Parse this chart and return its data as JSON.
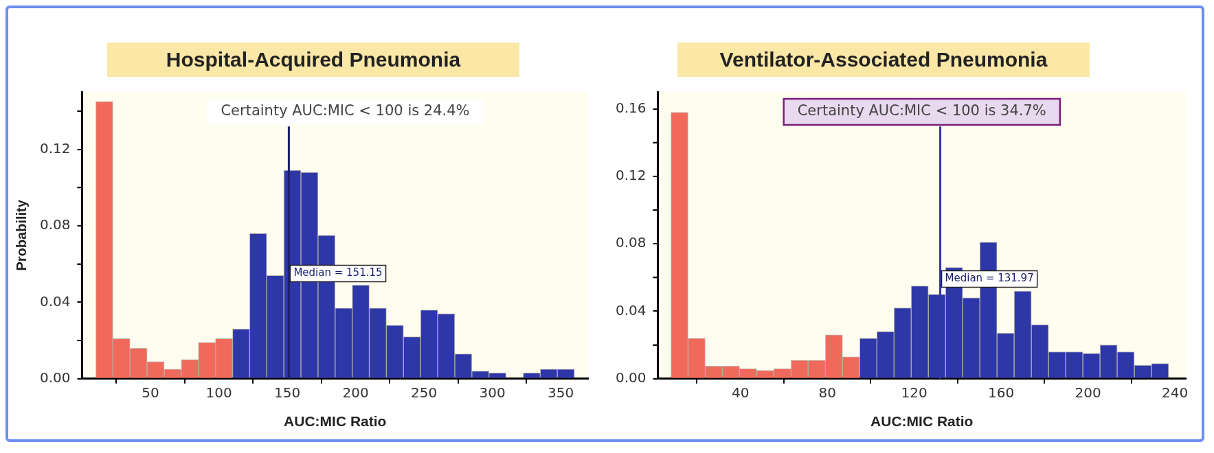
{
  "chart_data": [
    {
      "type": "histogram",
      "title": "Hospital-Acquired Pneumonia",
      "xlabel": "AUC:MIC Ratio",
      "ylabel": "Probability",
      "bins": [
        10,
        22.5,
        35,
        47.5,
        60,
        72.5,
        85,
        97.5,
        110,
        122.5,
        135,
        147.5,
        160,
        172.5,
        185,
        197.5,
        210,
        222.5,
        235,
        247.5,
        260,
        272.5,
        285,
        297.5,
        310,
        322.5,
        335,
        347.5,
        360
      ],
      "values": [
        0.145,
        0.021,
        0.016,
        0.009,
        0.005,
        0.01,
        0.019,
        0.021,
        0.026,
        0.076,
        0.054,
        0.109,
        0.108,
        0.075,
        0.037,
        0.049,
        0.037,
        0.028,
        0.022,
        0.036,
        0.034,
        0.013,
        0.004,
        0.003,
        0,
        0.003,
        0.005,
        0.005
      ],
      "colors": [
        "#f0695a",
        "#f0695a",
        "#f0695a",
        "#f0695a",
        "#f0695a",
        "#f0695a",
        "#f0695a",
        "#f0695a",
        "#2e37a8",
        "#2e37a8",
        "#2e37a8",
        "#2e37a8",
        "#2e37a8",
        "#2e37a8",
        "#2e37a8",
        "#2e37a8",
        "#2e37a8",
        "#2e37a8",
        "#2e37a8",
        "#2e37a8",
        "#2e37a8",
        "#2e37a8",
        "#2e37a8",
        "#2e37a8",
        "#2e37a8",
        "#2e37a8",
        "#2e37a8",
        "#2e37a8"
      ],
      "xlim": [
        0,
        370
      ],
      "xticks": [
        50,
        100,
        150,
        200,
        250,
        300,
        350
      ],
      "ylim": [
        0,
        0.15
      ],
      "yticks": [
        {
          "value": 0,
          "label": "0.00"
        },
        {
          "value": 0.02,
          "label": null
        },
        {
          "value": 0.04,
          "label": "0.04"
        },
        {
          "value": 0.06,
          "label": null
        },
        {
          "value": 0.08,
          "label": "0.08"
        },
        {
          "value": 0.1,
          "label": null
        },
        {
          "value": 0.12,
          "label": "0.12"
        },
        {
          "value": 0.14,
          "label": null
        }
      ],
      "ref_lines": [
        {
          "axis": "x",
          "value": 151.15,
          "label": "Median = 151.15",
          "color": "#1a1f6e"
        }
      ],
      "annotations": [
        "Certainty AUC:MIC < 100 is 24.4%"
      ]
    },
    {
      "type": "histogram",
      "title": "Ventilator-Associated Pneumonia",
      "xlabel": "AUC:MIC Ratio",
      "bins": [
        8,
        15.9,
        23.8,
        31.7,
        39.6,
        47.5,
        55.4,
        63.3,
        71.2,
        79.1,
        87,
        94.9,
        102.8,
        110.7,
        118.6,
        126.5,
        134.4,
        142.3,
        150.2,
        158.1,
        166,
        173.9,
        181.8,
        189.7,
        197.6,
        205.5,
        213.4,
        221.3,
        229.2,
        237.1
      ],
      "values": [
        0.158,
        0.024,
        0.0075,
        0.0075,
        0.006,
        0.005,
        0.006,
        0.011,
        0.011,
        0.026,
        0.013,
        0.024,
        0.028,
        0.042,
        0.055,
        0.05,
        0.066,
        0.048,
        0.081,
        0.027,
        0.052,
        0.032,
        0.016,
        0.016,
        0.015,
        0.02,
        0.016,
        0.008,
        0.009
      ],
      "colors": [
        "#f0695a",
        "#f0695a",
        "#f0695a",
        "#f0695a",
        "#f0695a",
        "#f0695a",
        "#f0695a",
        "#f0695a",
        "#f0695a",
        "#f0695a",
        "#f0695a",
        "#2e37a8",
        "#2e37a8",
        "#2e37a8",
        "#2e37a8",
        "#2e37a8",
        "#2e37a8",
        "#2e37a8",
        "#2e37a8",
        "#2e37a8",
        "#2e37a8",
        "#2e37a8",
        "#2e37a8",
        "#2e37a8",
        "#2e37a8",
        "#2e37a8",
        "#2e37a8",
        "#2e37a8",
        "#2e37a8"
      ],
      "xlim": [
        2,
        245
      ],
      "xticks": [
        40,
        80,
        120,
        160,
        200,
        240
      ],
      "ylim": [
        0,
        0.17
      ],
      "yticks": [
        {
          "value": 0,
          "label": "0.00"
        },
        {
          "value": 0.02,
          "label": null
        },
        {
          "value": 0.04,
          "label": "0.04"
        },
        {
          "value": 0.06,
          "label": null
        },
        {
          "value": 0.08,
          "label": "0.08"
        },
        {
          "value": 0.1,
          "label": null
        },
        {
          "value": 0.12,
          "label": "0.12"
        },
        {
          "value": 0.14,
          "label": null
        },
        {
          "value": 0.16,
          "label": "0.16"
        }
      ],
      "ref_lines": [
        {
          "axis": "x",
          "value": 131.97,
          "label": "Median = 131.97",
          "color": "#2e37a8"
        }
      ],
      "annotations": [
        "Certainty AUC:MIC < 100 is 34.7%"
      ]
    }
  ]
}
